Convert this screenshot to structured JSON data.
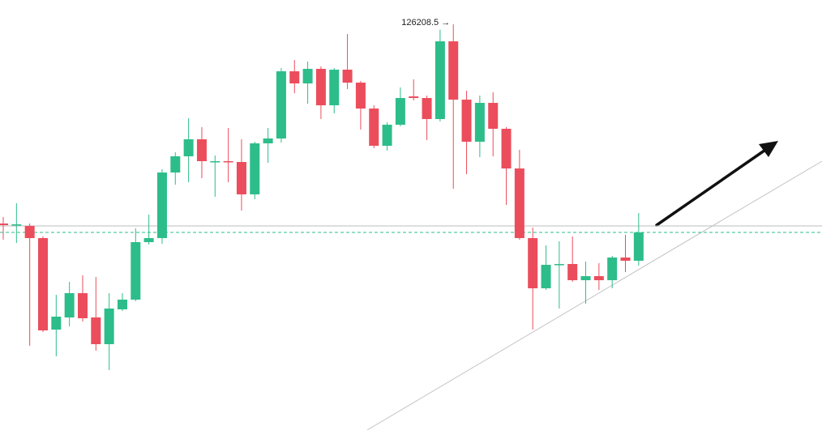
{
  "chart_data": {
    "type": "candlestick",
    "ylim": [
      102160,
      127650
    ],
    "up_color": "#2dbd8a",
    "down_color": "#eb4d5c",
    "price_line": 113872,
    "price_line_color": "#2dbd8a",
    "level_line": 114256,
    "level_line_color": "#bdbdbd",
    "max_label": "126208.5 →",
    "series": [
      {
        "open": [
          114400,
          114304,
          114256,
          113536,
          108112,
          108832,
          110272,
          108832,
          107248,
          109312,
          109888,
          113296,
          113536,
          117424,
          118384,
          119392,
          118048,
          118096,
          118048,
          116128,
          119152,
          119440,
          123424,
          122704,
          123568,
          121408,
          123520,
          122752,
          121216,
          119008,
          120256,
          121936,
          121840,
          120592,
          125200,
          121744,
          119248,
          121552,
          120016,
          117664,
          113536,
          110560,
          111952,
          112000,
          111040,
          111280,
          111040,
          112384,
          112192
        ],
        "high": [
          114784,
          115600,
          114400,
          113632,
          110176,
          110944,
          111328,
          111232,
          110272,
          110272,
          114112,
          114928,
          117616,
          118624,
          120640,
          120112,
          118432,
          120064,
          119392,
          119248,
          120064,
          123616,
          124096,
          124000,
          123712,
          123616,
          125632,
          122848,
          121408,
          120400,
          122464,
          122944,
          121984,
          125900,
          126208.5,
          122272,
          121984,
          122176,
          120112,
          118768,
          114160,
          113104,
          113344,
          113632,
          112144,
          112048,
          112480,
          113728,
          115024
        ],
        "low": [
          113440,
          113248,
          107152,
          107968,
          106528,
          108304,
          108592,
          106864,
          105712,
          109216,
          109792,
          113152,
          113200,
          116704,
          116848,
          117088,
          115984,
          116848,
          115168,
          115840,
          118000,
          119200,
          122128,
          121504,
          120592,
          120928,
          122368,
          119968,
          118864,
          118720,
          120160,
          121696,
          119344,
          120448,
          116464,
          117328,
          118336,
          118384,
          115504,
          113440,
          108112,
          110464,
          109360,
          110944,
          109648,
          110464,
          110560,
          111520,
          111904
        ],
        "close": [
          114304,
          114352,
          113536,
          108064,
          108880,
          110272,
          108784,
          107248,
          109360,
          109888,
          113296,
          113536,
          117424,
          118384,
          119392,
          118096,
          118096,
          118048,
          116128,
          119152,
          119440,
          123424,
          122704,
          123568,
          121408,
          123520,
          122752,
          121216,
          119008,
          120256,
          121840,
          121840,
          120592,
          125200,
          121744,
          119248,
          121552,
          120016,
          117664,
          113536,
          110560,
          111952,
          112000,
          111040,
          111280,
          111040,
          112384,
          112192,
          113872
        ]
      }
    ]
  }
}
